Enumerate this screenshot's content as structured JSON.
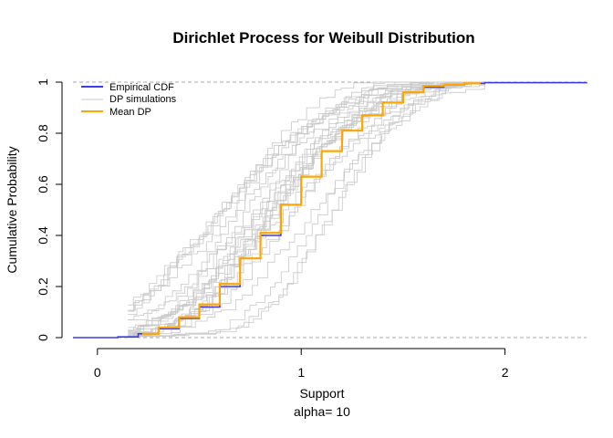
{
  "chart_data": {
    "type": "line",
    "title": "Dirichlet Process for Weibull Distribution",
    "xlabel": "Support",
    "xlabel_sub": "alpha= 10",
    "ylabel": "Cumulative Probability",
    "xlim": [
      -0.12,
      2.4
    ],
    "ylim": [
      0,
      1
    ],
    "x_ticks": [
      0,
      1,
      2
    ],
    "y_ticks": [
      0,
      0.2,
      0.4,
      0.6,
      0.8,
      1
    ],
    "x_tick_labels": [
      "0",
      "1",
      "2"
    ],
    "y_tick_labels": [
      "0",
      "0.2",
      "0.4",
      "0.6",
      "0.8",
      "1"
    ],
    "reference_lines_y": [
      0,
      1
    ],
    "grid": false,
    "legend_position": "top-left",
    "colors": {
      "empirical": "#3b3bf0",
      "simulations": "#c8c8c8",
      "mean": "#ffa500",
      "reference": "#aaaaaa"
    },
    "simulation_count": 25,
    "series": [
      {
        "name": "Empirical CDF",
        "color": "#3b3bf0",
        "x": [
          -0.12,
          0.1,
          0.2,
          0.3,
          0.4,
          0.5,
          0.6,
          0.7,
          0.8,
          0.9,
          1.0,
          1.1,
          1.2,
          1.3,
          1.4,
          1.5,
          1.6,
          1.7,
          1.8,
          1.9,
          2.4
        ],
        "y": [
          0,
          0.003,
          0.015,
          0.035,
          0.075,
          0.12,
          0.2,
          0.31,
          0.4,
          0.52,
          0.63,
          0.73,
          0.81,
          0.87,
          0.92,
          0.96,
          0.98,
          0.99,
          0.995,
          0.998,
          1.0
        ]
      },
      {
        "name": "DP simulations",
        "color": "#c8c8c8"
      },
      {
        "name": "Mean DP",
        "color": "#ffa500",
        "x": [
          0.22,
          0.3,
          0.4,
          0.5,
          0.6,
          0.7,
          0.8,
          0.9,
          1.0,
          1.1,
          1.2,
          1.3,
          1.4,
          1.5,
          1.6,
          1.7,
          1.8,
          1.88
        ],
        "y": [
          0.015,
          0.04,
          0.08,
          0.13,
          0.21,
          0.31,
          0.41,
          0.52,
          0.63,
          0.73,
          0.81,
          0.87,
          0.92,
          0.96,
          0.985,
          0.99,
          0.995,
          0.995
        ]
      }
    ]
  }
}
